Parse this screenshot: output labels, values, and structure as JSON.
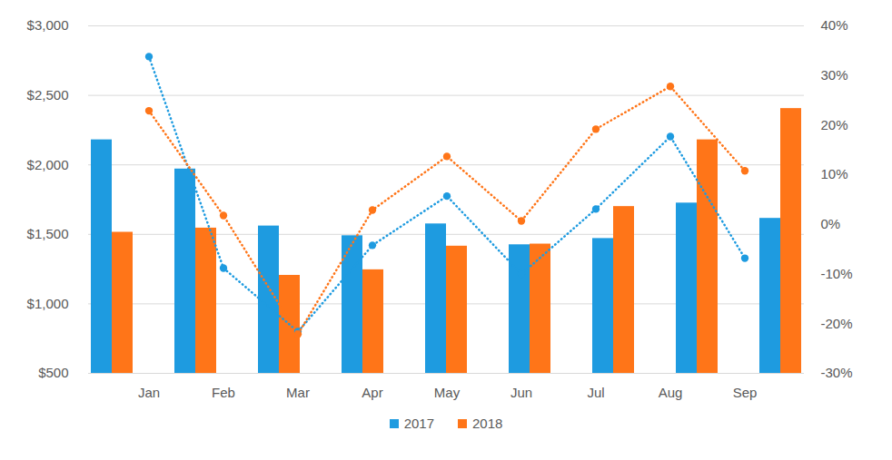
{
  "chart_data": {
    "type": "bar",
    "categories": [
      "Jan",
      "Feb",
      "Mar",
      "Apr",
      "May",
      "Jun",
      "Jul",
      "Aug",
      "Sep"
    ],
    "series": [
      {
        "name": "2017",
        "color": "#1e9be0",
        "values": [
          2180,
          1970,
          1560,
          1490,
          1575,
          1425,
          1470,
          1725,
          1615
        ]
      },
      {
        "name": "2018",
        "color": "#ff7518",
        "values": [
          1515,
          1545,
          1205,
          1245,
          1415,
          1430,
          1700,
          2180,
          2405
        ]
      },
      {
        "name": "2017",
        "type": "line",
        "axis": "y2",
        "color": "#1e9be0",
        "line_style": "dotted",
        "marker": "dot",
        "values": [
          33.8,
          -8.8,
          -21.6,
          -4.2,
          5.7,
          -10.0,
          3.1,
          17.7,
          -6.8
        ]
      },
      {
        "name": "2018",
        "type": "line",
        "axis": "y2",
        "color": "#ff7518",
        "line_style": "dotted",
        "marker": "dot",
        "values": [
          22.9,
          1.8,
          -22.1,
          2.9,
          13.7,
          0.7,
          19.2,
          27.8,
          10.8
        ]
      }
    ],
    "ylim": [
      500,
      3000
    ],
    "yticks": [
      {
        "value": 500,
        "label": "$500"
      },
      {
        "value": 1000,
        "label": "$1,000"
      },
      {
        "value": 1500,
        "label": "$1,500"
      },
      {
        "value": 2000,
        "label": "$2,000"
      },
      {
        "value": 2500,
        "label": "$2,500"
      },
      {
        "value": 3000,
        "label": "$3,000"
      }
    ],
    "y2lim": [
      -30,
      40
    ],
    "y2ticks": [
      {
        "value": -30,
        "label": "-30%"
      },
      {
        "value": -20,
        "label": "-20%"
      },
      {
        "value": -10,
        "label": "-10%"
      },
      {
        "value": 0,
        "label": "0%"
      },
      {
        "value": 10,
        "label": "10%"
      },
      {
        "value": 20,
        "label": "20%"
      },
      {
        "value": 30,
        "label": "30%"
      },
      {
        "value": 40,
        "label": "40%"
      }
    ],
    "grid": true,
    "legend": "bottom"
  }
}
